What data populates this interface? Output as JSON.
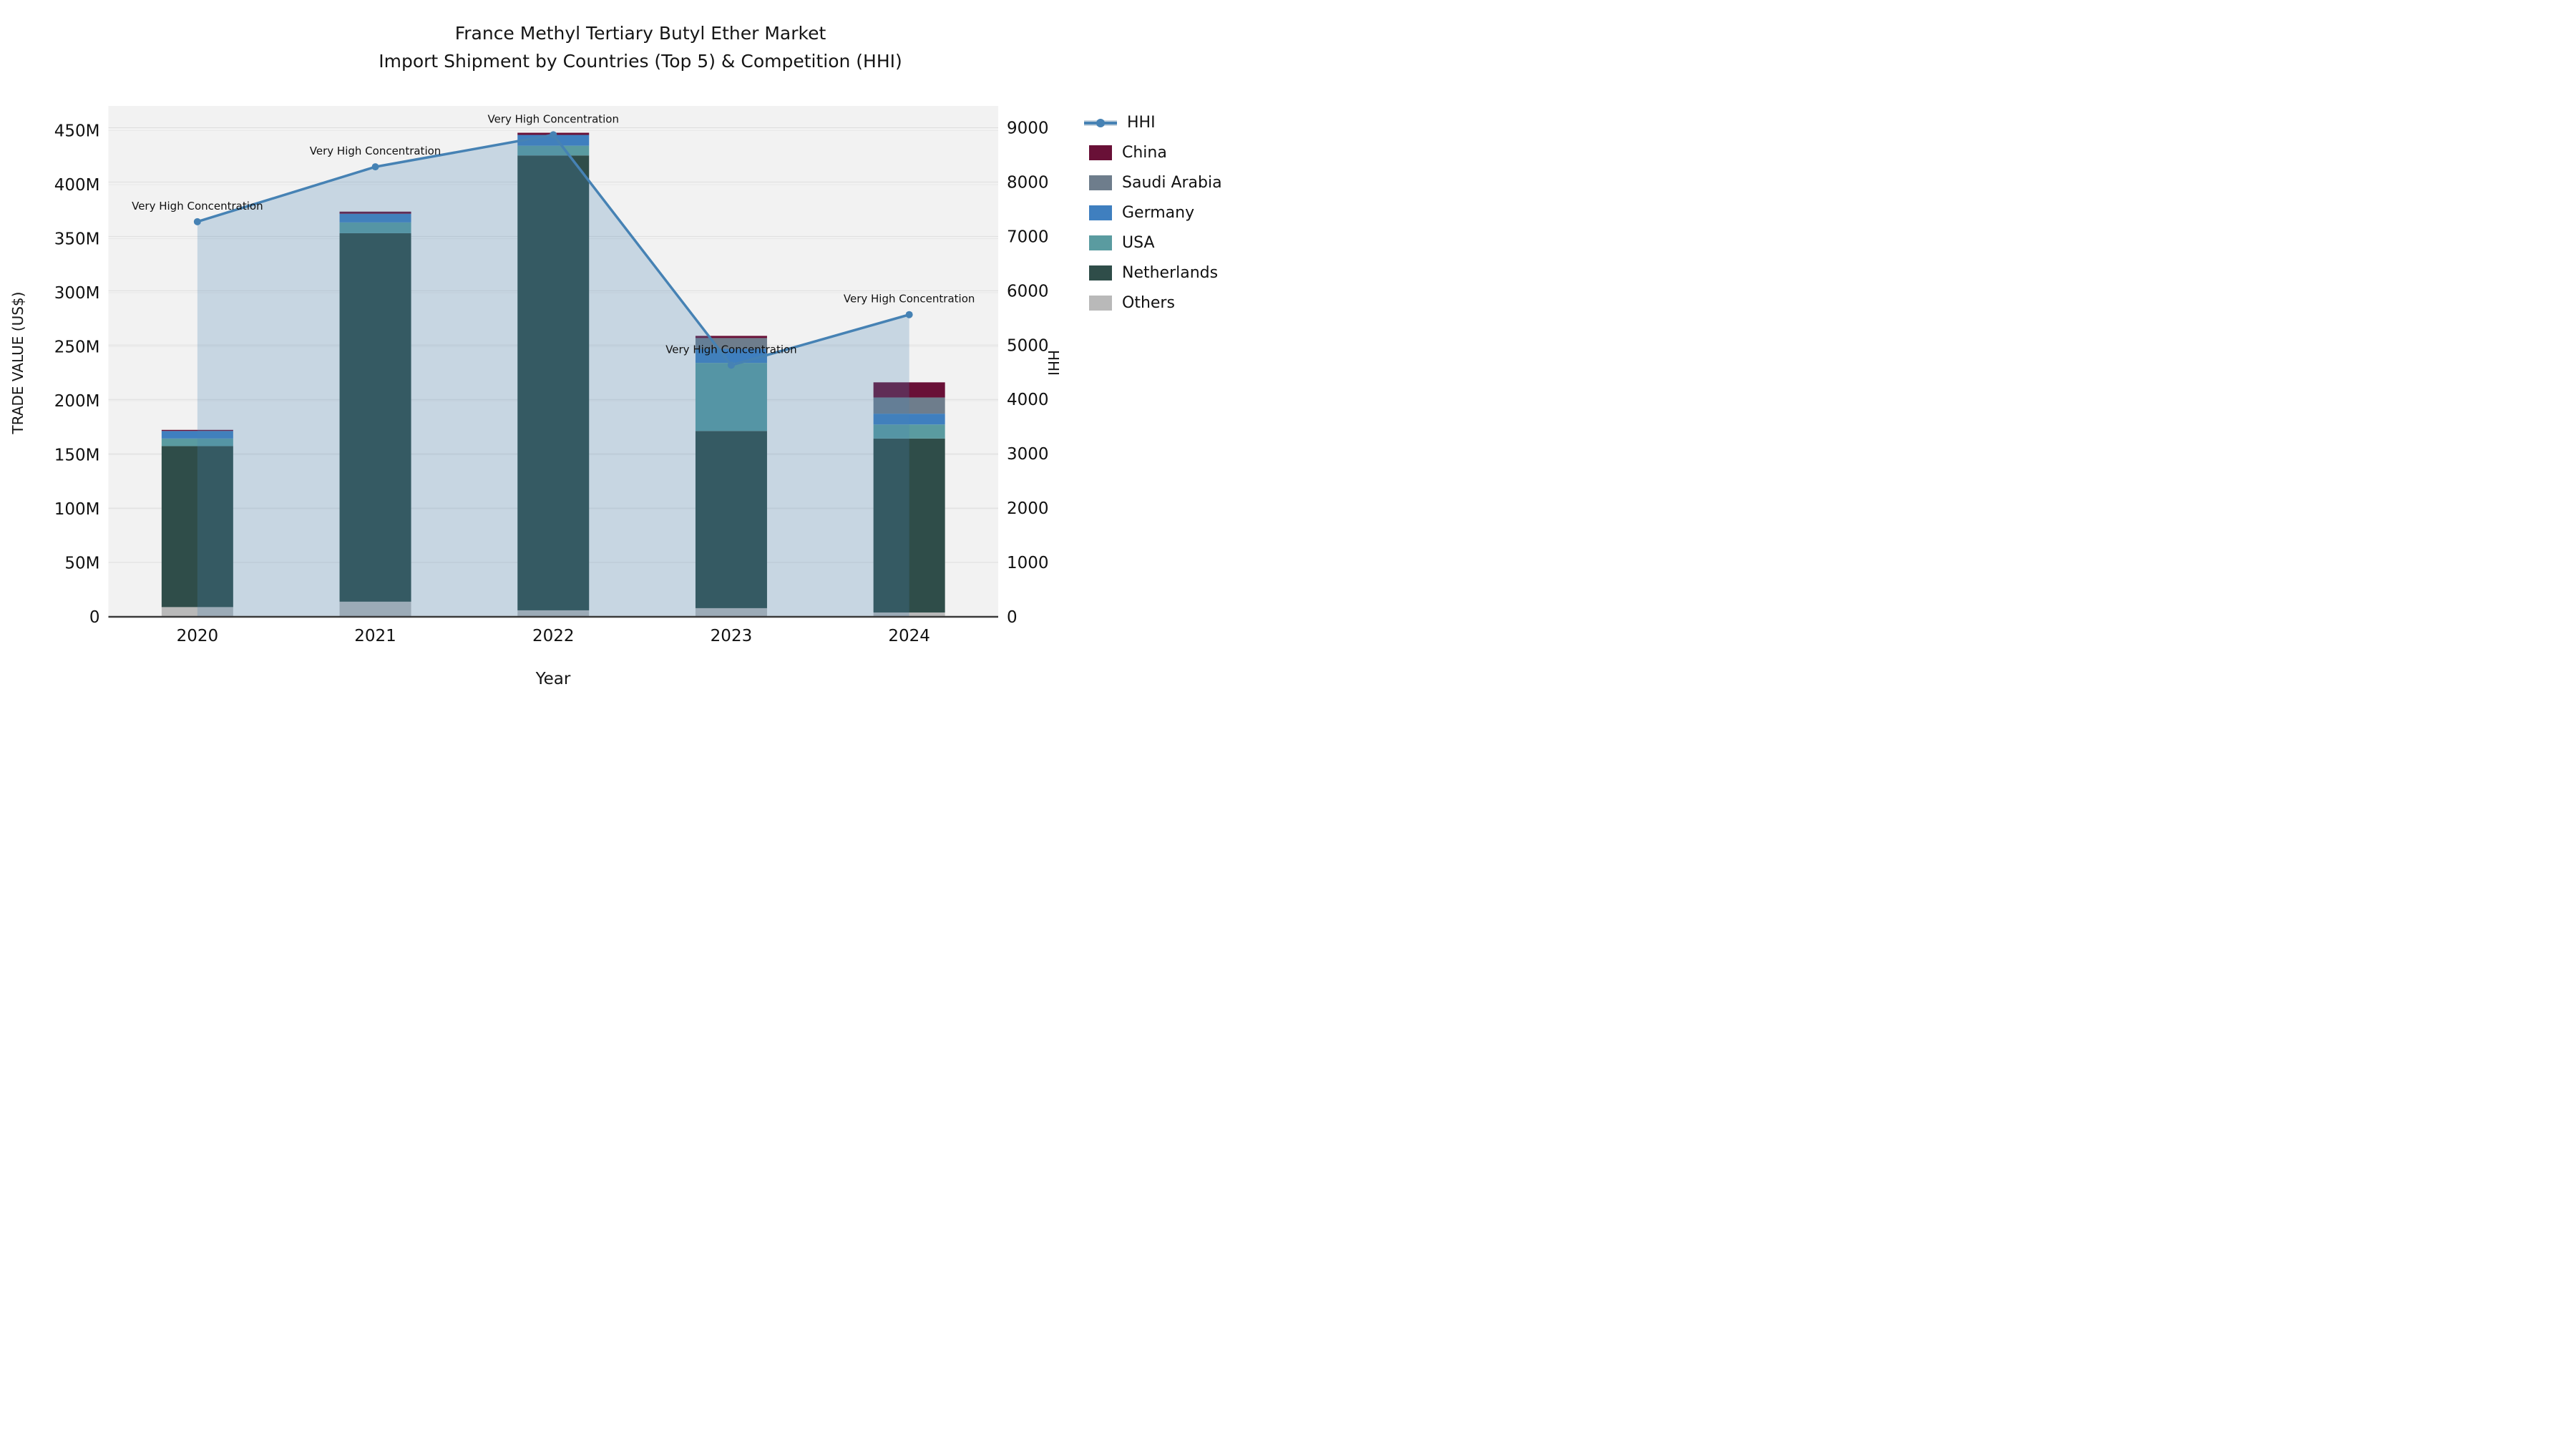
{
  "title": {
    "line1": "France Methyl Tertiary Butyl Ether Market",
    "line2": "Import Shipment by Countries (Top 5) & Competition (HHI)"
  },
  "axes": {
    "x_title": "Year",
    "y_left_title": "TRADE VALUE (US$)",
    "y_right_title": "HHI",
    "y_left_tick_labels": [
      "0",
      "50M",
      "100M",
      "150M",
      "200M",
      "250M",
      "300M",
      "350M",
      "400M",
      "450M"
    ],
    "y_left_max_millions": 450,
    "y_right_tick_labels": [
      "0",
      "1000",
      "2000",
      "3000",
      "4000",
      "5000",
      "6000",
      "7000",
      "8000",
      "9000"
    ],
    "y_right_max": 9000,
    "x_tick_labels": [
      "2020",
      "2021",
      "2022",
      "2023",
      "2024"
    ]
  },
  "legend": {
    "items": [
      {
        "label": "HHI",
        "type": "line",
        "color": "#4682b4"
      },
      {
        "label": "China",
        "type": "box",
        "color": "#691037"
      },
      {
        "label": "Saudi Arabia",
        "type": "box",
        "color": "#6e7d8c"
      },
      {
        "label": "Germany",
        "type": "box",
        "color": "#3f7fbf"
      },
      {
        "label": "USA",
        "type": "box",
        "color": "#5a9ba0"
      },
      {
        "label": "Netherlands",
        "type": "box",
        "color": "#2f4d49"
      },
      {
        "label": "Others",
        "type": "box",
        "color": "#b9b9b9"
      }
    ]
  },
  "chart_data": {
    "type": "combo-stacked-bar-and-line",
    "categories": [
      "2020",
      "2021",
      "2022",
      "2023",
      "2024"
    ],
    "bar_value_unit": "US$ millions (left axis, TRADE VALUE)",
    "bar_series_bottom_to_top": [
      {
        "name": "Others",
        "color": "#b9b9b9",
        "values": [
          9,
          14,
          6,
          8,
          4
        ]
      },
      {
        "name": "Netherlands",
        "color": "#2f4d49",
        "values": [
          149,
          341,
          421,
          164,
          161
        ]
      },
      {
        "name": "USA",
        "color": "#5a9ba0",
        "values": [
          7,
          10,
          9,
          63,
          13
        ]
      },
      {
        "name": "Germany",
        "color": "#3f7fbf",
        "values": [
          7,
          8,
          10,
          13,
          10
        ]
      },
      {
        "name": "Saudi Arabia",
        "color": "#6e7d8c",
        "values": [
          0,
          0,
          0,
          10,
          15
        ]
      },
      {
        "name": "China",
        "color": "#691037",
        "values": [
          1,
          2,
          2,
          2,
          14
        ]
      }
    ],
    "bar_totals_millions": [
      173,
      375,
      448,
      260,
      217
    ],
    "line_series": {
      "name": "HHI",
      "axis": "right",
      "color": "#4682b4",
      "area_fill": "rgba(70,130,180,0.25)",
      "values": [
        7270,
        8280,
        8870,
        4630,
        5560
      ]
    },
    "point_annotations": [
      "Very High Concentration",
      "Very High Concentration",
      "Very High Concentration",
      "Very High Concentration",
      "Very High Concentration"
    ],
    "layout_hints": {
      "plot_background": "#f2f2f2",
      "grid": "horizontal, both axes, light",
      "legend_position": "right, outside plot",
      "left_axis_range_millions": [
        0,
        450
      ],
      "right_axis_range": [
        0,
        9000
      ]
    }
  }
}
